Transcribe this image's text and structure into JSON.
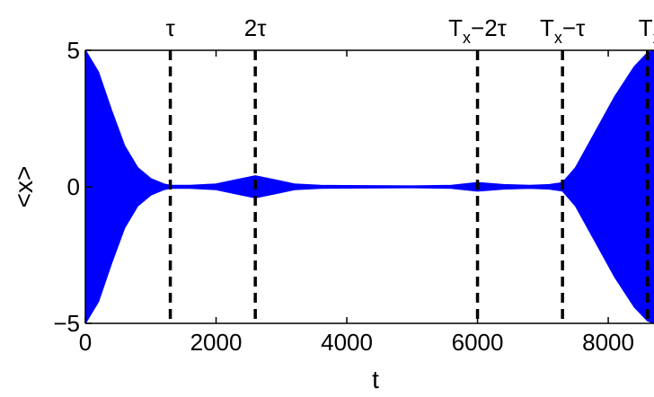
{
  "chart_data": {
    "type": "area",
    "title": "",
    "xlabel": "t",
    "ylabel": "<x>",
    "xlim": [
      0,
      8700
    ],
    "ylim": [
      -5,
      5
    ],
    "xticks": [
      0,
      2000,
      4000,
      6000,
      8000
    ],
    "yticks": [
      -5,
      0,
      5
    ],
    "xtick_labels": [
      "0",
      "2000",
      "4000",
      "6000",
      "8000"
    ],
    "ytick_labels": [
      "−5",
      "0",
      "5"
    ],
    "grid": false,
    "legend": "none",
    "series": [
      {
        "kind": "oscillation-envelope",
        "color": "#0000ff",
        "x": [
          0,
          200,
          400,
          600,
          800,
          1000,
          1200,
          1300,
          1600,
          2000,
          2300,
          2600,
          2900,
          3200,
          3600,
          4000,
          5000,
          5600,
          6000,
          6400,
          6800,
          7100,
          7300,
          7500,
          7800,
          8100,
          8400,
          8600,
          8700
        ],
        "amplitude": [
          5.0,
          4.2,
          2.8,
          1.5,
          0.7,
          0.3,
          0.1,
          0.05,
          0.05,
          0.1,
          0.25,
          0.4,
          0.25,
          0.1,
          0.05,
          0.04,
          0.03,
          0.05,
          0.15,
          0.08,
          0.05,
          0.08,
          0.15,
          0.7,
          2.0,
          3.3,
          4.4,
          4.9,
          5.0
        ]
      }
    ],
    "vlines": [
      {
        "x": 1300,
        "label": "τ",
        "style": "dashed",
        "color": "#000000"
      },
      {
        "x": 2600,
        "label": "2τ",
        "style": "dashed",
        "color": "#000000"
      },
      {
        "x": 6000,
        "label_main": "T",
        "label_sub": "x",
        "label_tail": "−2τ",
        "style": "dashed",
        "color": "#000000"
      },
      {
        "x": 7300,
        "label_main": "T",
        "label_sub": "x",
        "label_tail": "−τ",
        "style": "dashed",
        "color": "#000000"
      },
      {
        "x": 8600,
        "label_main": "T",
        "label_sub": "x",
        "label_tail": "",
        "style": "dashed",
        "color": "#000000"
      }
    ]
  }
}
